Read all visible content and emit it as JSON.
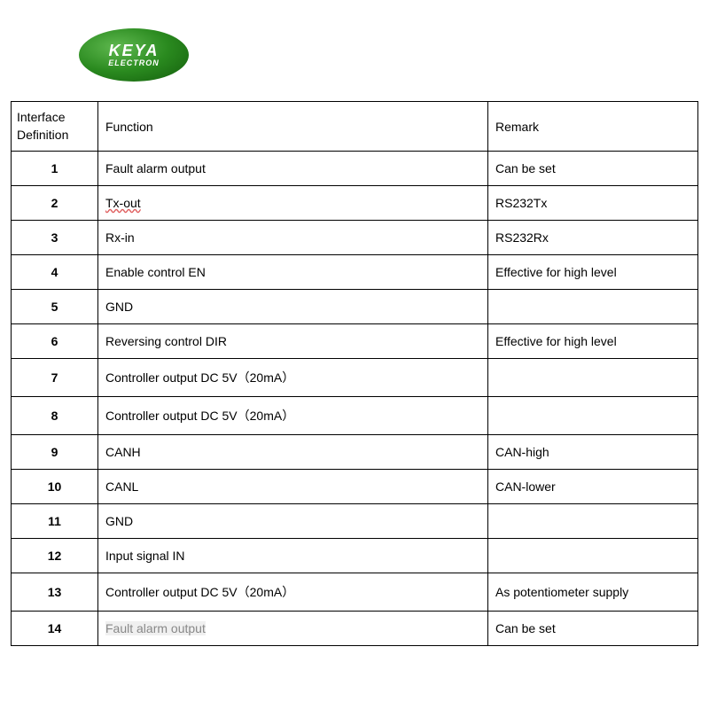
{
  "logo": {
    "main": "KEYA",
    "sub": "ELECTRON",
    "bg_gradient_start": "#5fb84f",
    "bg_gradient_mid": "#2a8a1f",
    "bg_gradient_end": "#135c0c",
    "text_color": "#ffffff"
  },
  "table": {
    "border_color": "#000000",
    "headers": {
      "definition": "Interface Definition",
      "function": "Function",
      "remark": "Remark"
    },
    "rows": [
      {
        "def": "1",
        "func": "Fault alarm output",
        "remark": "Can be set"
      },
      {
        "def": "2",
        "func": "Tx-out",
        "remark": "RS232Tx",
        "spellcheck": true
      },
      {
        "def": "3",
        "func": "Rx-in",
        "remark": "RS232Rx"
      },
      {
        "def": "4",
        "func": "Enable control EN",
        "remark": "Effective for high level"
      },
      {
        "def": "5",
        "func": "GND",
        "remark": ""
      },
      {
        "def": "6",
        "func": "Reversing control DIR",
        "remark": "Effective for high level"
      },
      {
        "def": "7",
        "func": "Controller output DC 5V（20mA）",
        "remark": ""
      },
      {
        "def": "8",
        "func": "Controller output DC 5V（20mA）",
        "remark": ""
      },
      {
        "def": "9",
        "func": "CANH",
        "remark": "CAN-high"
      },
      {
        "def": "10",
        "func": "CANL",
        "remark": "CAN-lower"
      },
      {
        "def": "11",
        "func": "GND",
        "remark": ""
      },
      {
        "def": "12",
        "func": "Input signal IN",
        "remark": ""
      },
      {
        "def": "13",
        "func": "Controller output DC 5V（20mA）",
        "remark": "As potentiometer supply"
      },
      {
        "def": "14",
        "func": "Fault alarm output",
        "remark": "Can be set",
        "grey": true
      }
    ]
  }
}
